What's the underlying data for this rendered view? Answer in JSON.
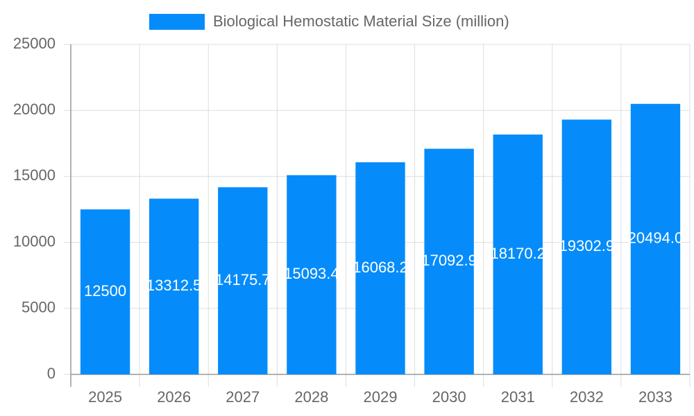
{
  "chart_data": {
    "type": "bar",
    "categories": [
      "2025",
      "2026",
      "2027",
      "2028",
      "2029",
      "2030",
      "2031",
      "2032",
      "2033"
    ],
    "series": [
      {
        "name": "Biological Hemostatic Material Size (million)",
        "color": "#068cfa",
        "values": [
          12500,
          13312.5,
          14175.7,
          15093.4,
          16068.2,
          17092.9,
          18170.2,
          19302.9,
          20494.0
        ],
        "value_labels": [
          "12500",
          "13312.5",
          "14175.7",
          "15093.4",
          "16068.2",
          "17092.9",
          "18170.2",
          "19302.9",
          "20494.0"
        ]
      }
    ],
    "ylim": [
      0,
      25000
    ],
    "yticks": [
      0,
      5000,
      10000,
      15000,
      20000,
      25000
    ],
    "grid": true,
    "legend": "top"
  }
}
